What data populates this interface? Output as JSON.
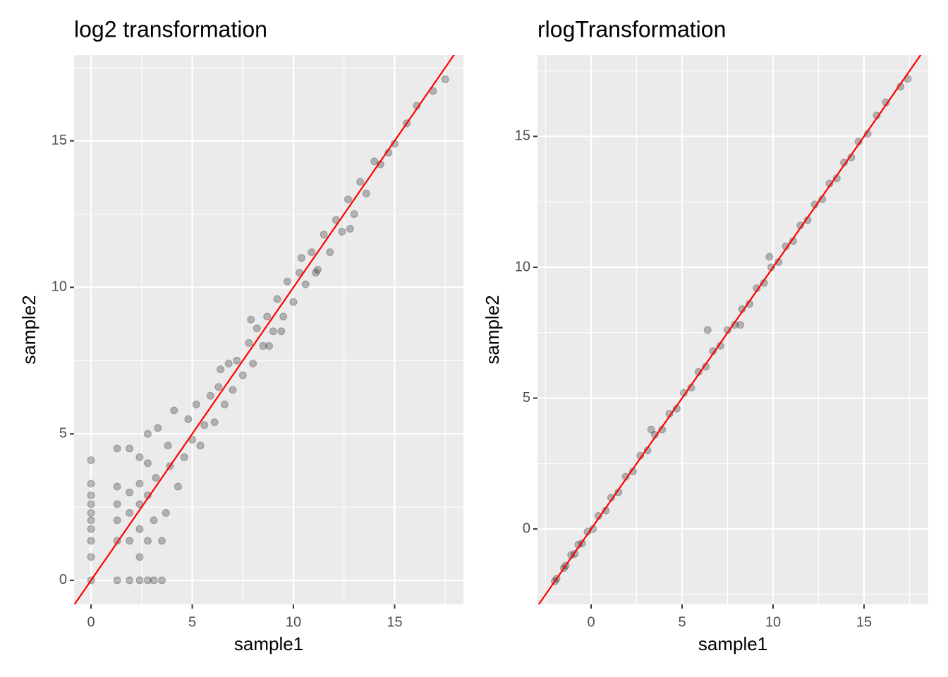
{
  "chart_data": [
    {
      "type": "scatter",
      "title": "log2 transformation",
      "x_label": "sample1",
      "y_label": "sample2",
      "xlim": [
        -0.84,
        18.4
      ],
      "ylim": [
        -0.82,
        17.93
      ],
      "xticks": [
        0,
        5,
        10,
        15
      ],
      "yticks": [
        0,
        5,
        10,
        15
      ],
      "minor_xticks": [
        2.5,
        7.5,
        12.5,
        17.5
      ],
      "minor_yticks": [
        2.5,
        7.5,
        12.5,
        17.5
      ],
      "grid": true,
      "color": "#000000",
      "alpha": 0.25,
      "abline": {
        "slope": 1,
        "intercept": 0,
        "color": "#ff0000"
      },
      "x": [
        0,
        0,
        0,
        0,
        0,
        0,
        0,
        0,
        0,
        0,
        1.29,
        1.29,
        1.29,
        1.29,
        1.29,
        1.29,
        1.9,
        1.9,
        1.9,
        1.9,
        1.9,
        2.4,
        2.4,
        2.4,
        2.4,
        2.4,
        2.4,
        2.8,
        2.8,
        2.8,
        2.8,
        2.8,
        3.1,
        3.1,
        3.2,
        3.3,
        3.5,
        3.5,
        3.7,
        3.8,
        3.9,
        4.1,
        4.3,
        4.6,
        4.8,
        5,
        5.2,
        5.4,
        5.6,
        5.9,
        6.1,
        6.3,
        6.6,
        6.8,
        7,
        7.2,
        7.5,
        7.8,
        8,
        8.2,
        8.5,
        8.7,
        9,
        9.2,
        9.5,
        9.7,
        10,
        10.3,
        10.6,
        10.9,
        11.2,
        11.5,
        11.8,
        12.1,
        12.4,
        12.7,
        13,
        13.3,
        13.6,
        14,
        14.3,
        14.7,
        15,
        15.6,
        16.1,
        16.9,
        17.5,
        7.9,
        9.4,
        11.1,
        12.8,
        6.4,
        8.8,
        10.4
      ],
      "y": [
        0,
        0.8,
        1.35,
        1.75,
        2.05,
        2.3,
        2.6,
        2.9,
        3.3,
        4.1,
        0,
        1.35,
        2.05,
        2.6,
        3.2,
        4.5,
        0,
        1.35,
        2.3,
        3.0,
        4.5,
        0,
        0.8,
        1.75,
        2.6,
        3.3,
        4.2,
        0,
        1.35,
        2.9,
        4.0,
        5.0,
        0,
        2.05,
        3.5,
        5.2,
        0,
        1.35,
        2.3,
        4.6,
        3.9,
        5.8,
        3.2,
        4.2,
        5.5,
        4.8,
        6,
        4.6,
        5.3,
        6.3,
        5.4,
        6.6,
        6.0,
        7.4,
        6.5,
        7.5,
        7,
        8.1,
        7.4,
        8.6,
        8,
        9,
        8.5,
        9.6,
        9,
        10.2,
        9.5,
        10.5,
        10.1,
        11.2,
        10.6,
        11.8,
        11.2,
        12.3,
        11.9,
        13,
        12.5,
        13.6,
        13.2,
        14.3,
        14.2,
        14.6,
        14.9,
        15.6,
        16.2,
        16.7,
        17.1,
        8.9,
        8.5,
        10.5,
        12.0,
        7.2,
        8.0,
        11.0
      ]
    },
    {
      "type": "scatter",
      "title": "rlogTransformation",
      "x_label": "sample1",
      "y_label": "sample2",
      "xlim": [
        -2.95,
        18.53
      ],
      "ylim": [
        -2.88,
        18.11
      ],
      "xticks": [
        0,
        5,
        10,
        15
      ],
      "yticks": [
        0,
        5,
        10,
        15
      ],
      "minor_xticks": [
        -2.5,
        2.5,
        7.5,
        12.5,
        17.5
      ],
      "minor_yticks": [
        -2.5,
        2.5,
        7.5,
        12.5,
        17.5
      ],
      "grid": true,
      "color": "#000000",
      "alpha": 0.25,
      "abline": {
        "slope": 1,
        "intercept": 0,
        "color": "#ff0000"
      },
      "x": [
        -2,
        -1.9,
        -1.5,
        -1.4,
        -1.1,
        -0.9,
        -0.7,
        -0.5,
        -0.2,
        0.1,
        0.4,
        0.8,
        1.1,
        1.5,
        1.9,
        2.3,
        2.7,
        3.1,
        3.5,
        3.9,
        4.3,
        4.7,
        5.1,
        5.5,
        5.9,
        6.3,
        6.7,
        7.1,
        7.5,
        7.9,
        8.3,
        8.7,
        9.1,
        9.5,
        9.9,
        10.3,
        10.7,
        11.1,
        11.5,
        11.9,
        12.3,
        12.7,
        13.1,
        13.5,
        13.9,
        14.3,
        14.7,
        15.2,
        15.7,
        16.2,
        17.0,
        17.4,
        6.4,
        8.2,
        9.8,
        3.3
      ],
      "y": [
        -2,
        -1.9,
        -1.5,
        -1.4,
        -1.0,
        -0.95,
        -0.6,
        -0.55,
        -0.1,
        0.0,
        0.5,
        0.7,
        1.2,
        1.4,
        2.0,
        2.2,
        2.8,
        3.0,
        3.6,
        3.8,
        4.4,
        4.6,
        5.2,
        5.4,
        6.0,
        6.2,
        6.8,
        7.0,
        7.6,
        7.8,
        8.4,
        8.6,
        9.2,
        9.4,
        10.0,
        10.2,
        10.8,
        11.0,
        11.6,
        11.8,
        12.4,
        12.6,
        13.2,
        13.4,
        14.0,
        14.2,
        14.8,
        15.1,
        15.8,
        16.3,
        16.9,
        17.2,
        7.6,
        7.8,
        10.4,
        3.8
      ]
    }
  ]
}
